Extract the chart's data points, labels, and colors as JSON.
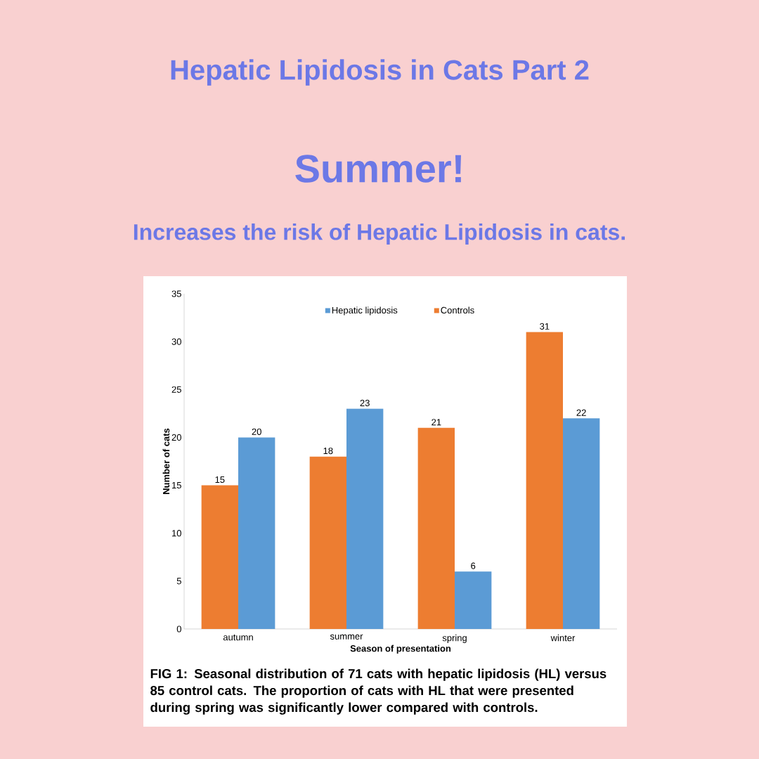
{
  "chart_data": {
    "type": "bar",
    "title": "Hepatic Lipidosis in Cats  Part 2",
    "subtitle": "Summer!",
    "categories": [
      "autumn",
      "summer",
      "spring",
      "winter"
    ],
    "series": [
      {
        "name": "Controls",
        "color": "#ed7d31",
        "values": [
          15,
          18,
          21,
          31
        ]
      },
      {
        "name": "Hepatic lipidosis",
        "color": "#5b9bd5",
        "values": [
          20,
          23,
          6,
          22
        ]
      }
    ],
    "xlabel": "Season of presentation",
    "ylabel": "Number of cats",
    "ylim": [
      0,
      35
    ],
    "yticks": [
      0,
      5,
      10,
      15,
      20,
      25,
      30,
      35
    ],
    "data_labels": true,
    "legend": "top",
    "grid": false,
    "annotations": [
      "Increases the risk of Hepatic Lipidosis in cats.",
      "FIG 1:    Seasonal distribution of 71 cats with hepatic lipidosis (HL) versus 85 control cats. The proportion of cats with HL that were presented during spring was significantly lower compared with controls."
    ]
  }
}
